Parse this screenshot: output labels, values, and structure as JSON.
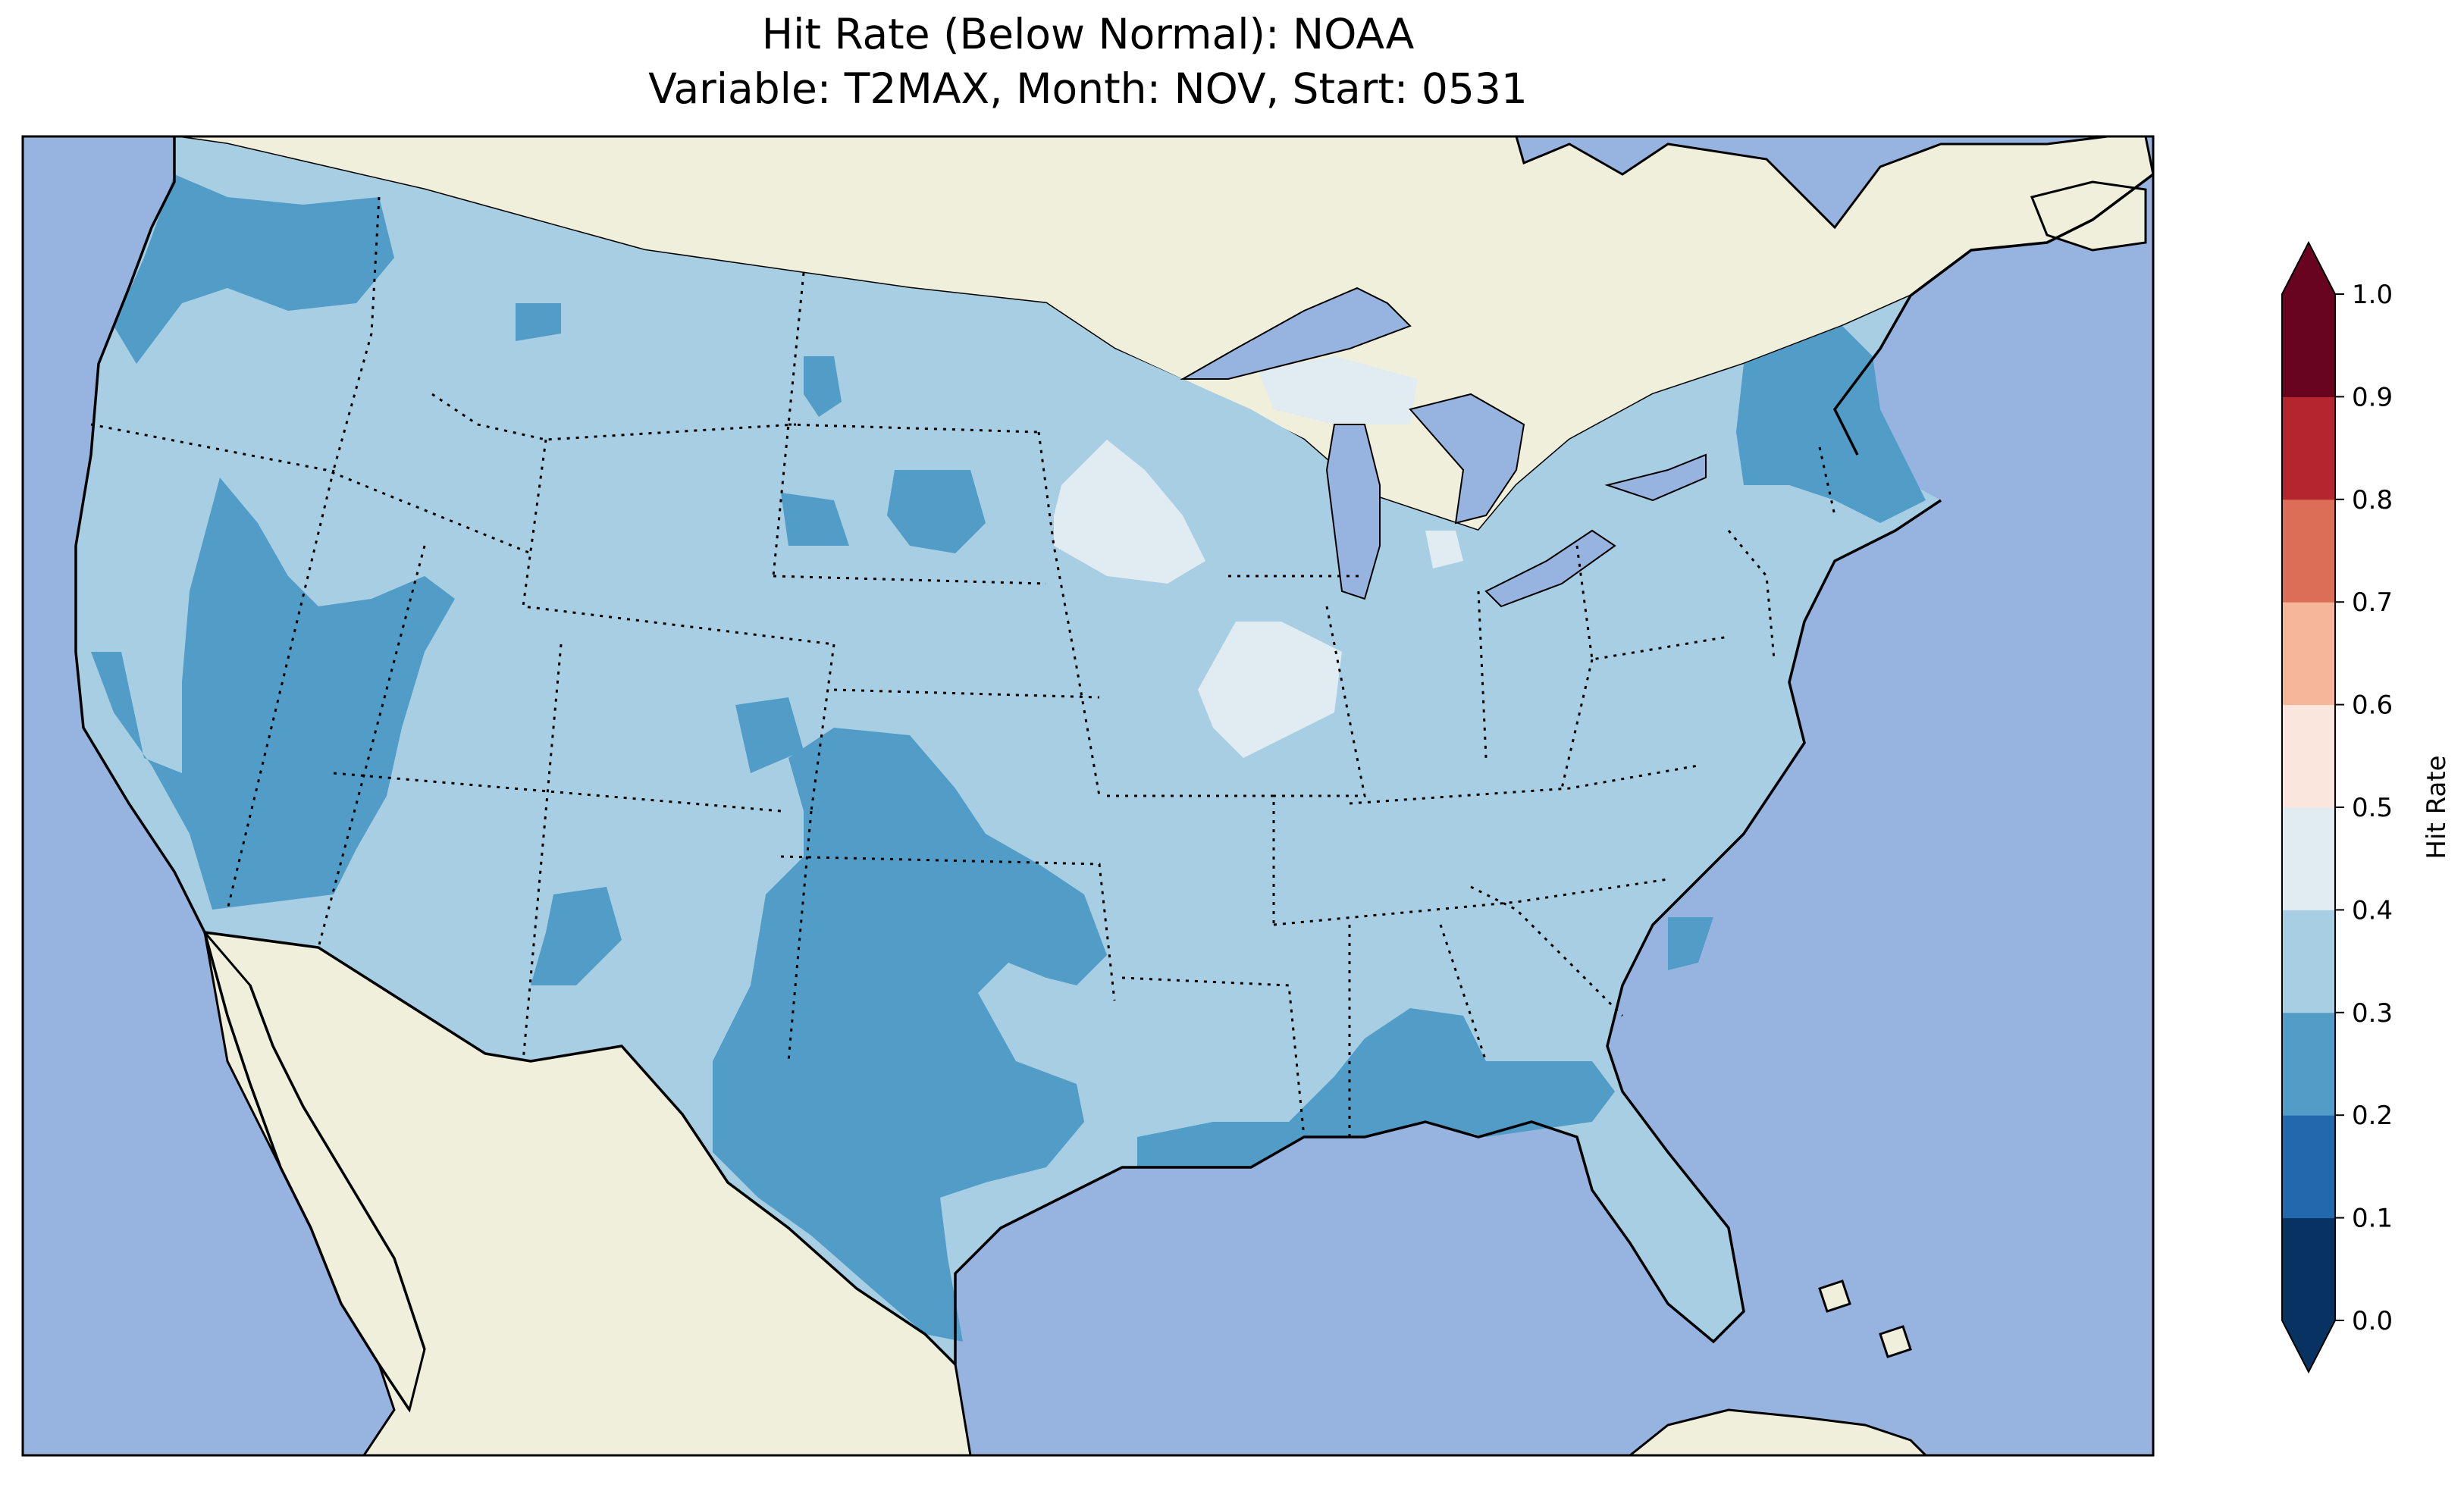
{
  "title": {
    "line1": "Hit Rate (Below Normal): NOAA",
    "line2": "Variable: T2MAX, Month: NOV, Start: 0531"
  },
  "colors": {
    "ocean": "#97b4e0",
    "land": "#efefdc",
    "lake": "#97b4e0"
  },
  "colorbar": {
    "label": "Hit Rate",
    "ticks": [
      "0.0",
      "0.1",
      "0.2",
      "0.3",
      "0.4",
      "0.5",
      "0.6",
      "0.7",
      "0.8",
      "0.9",
      "1.0"
    ],
    "bins": [
      {
        "from": 0.0,
        "to": 0.1,
        "color": "#073262"
      },
      {
        "from": 0.1,
        "to": 0.2,
        "color": "#2268ac"
      },
      {
        "from": 0.2,
        "to": 0.3,
        "color": "#529cc8"
      },
      {
        "from": 0.3,
        "to": 0.4,
        "color": "#a7cee3"
      },
      {
        "from": 0.4,
        "to": 0.5,
        "color": "#e0ebf2"
      },
      {
        "from": 0.5,
        "to": 0.6,
        "color": "#fae6dc"
      },
      {
        "from": 0.6,
        "to": 0.7,
        "color": "#f5b699"
      },
      {
        "from": 0.7,
        "to": 0.8,
        "color": "#dc6e57"
      },
      {
        "from": 0.8,
        "to": 0.9,
        "color": "#b52530"
      },
      {
        "from": 0.9,
        "to": 1.0,
        "color": "#680420"
      }
    ],
    "extend": "both"
  },
  "map_data": {
    "extent_lon": [
      -125,
      -67
    ],
    "extent_lat": [
      23,
      50
    ],
    "default_value": 0.35,
    "regions": [
      {
        "name": "Pacific Northwest coast",
        "value": 0.25
      },
      {
        "name": "Nevada and California interior",
        "value": 0.25
      },
      {
        "name": "Texas and Oklahoma",
        "value": 0.25
      },
      {
        "name": "Gulf Coast",
        "value": 0.25
      },
      {
        "name": "Northern New England",
        "value": 0.25
      },
      {
        "name": "Western South Dakota",
        "value": 0.25
      },
      {
        "name": "Minnesota",
        "value": 0.45
      },
      {
        "name": "Illinois",
        "value": 0.45
      },
      {
        "name": "Northern Wisconsin and Upper Michigan",
        "value": 0.45
      }
    ]
  }
}
